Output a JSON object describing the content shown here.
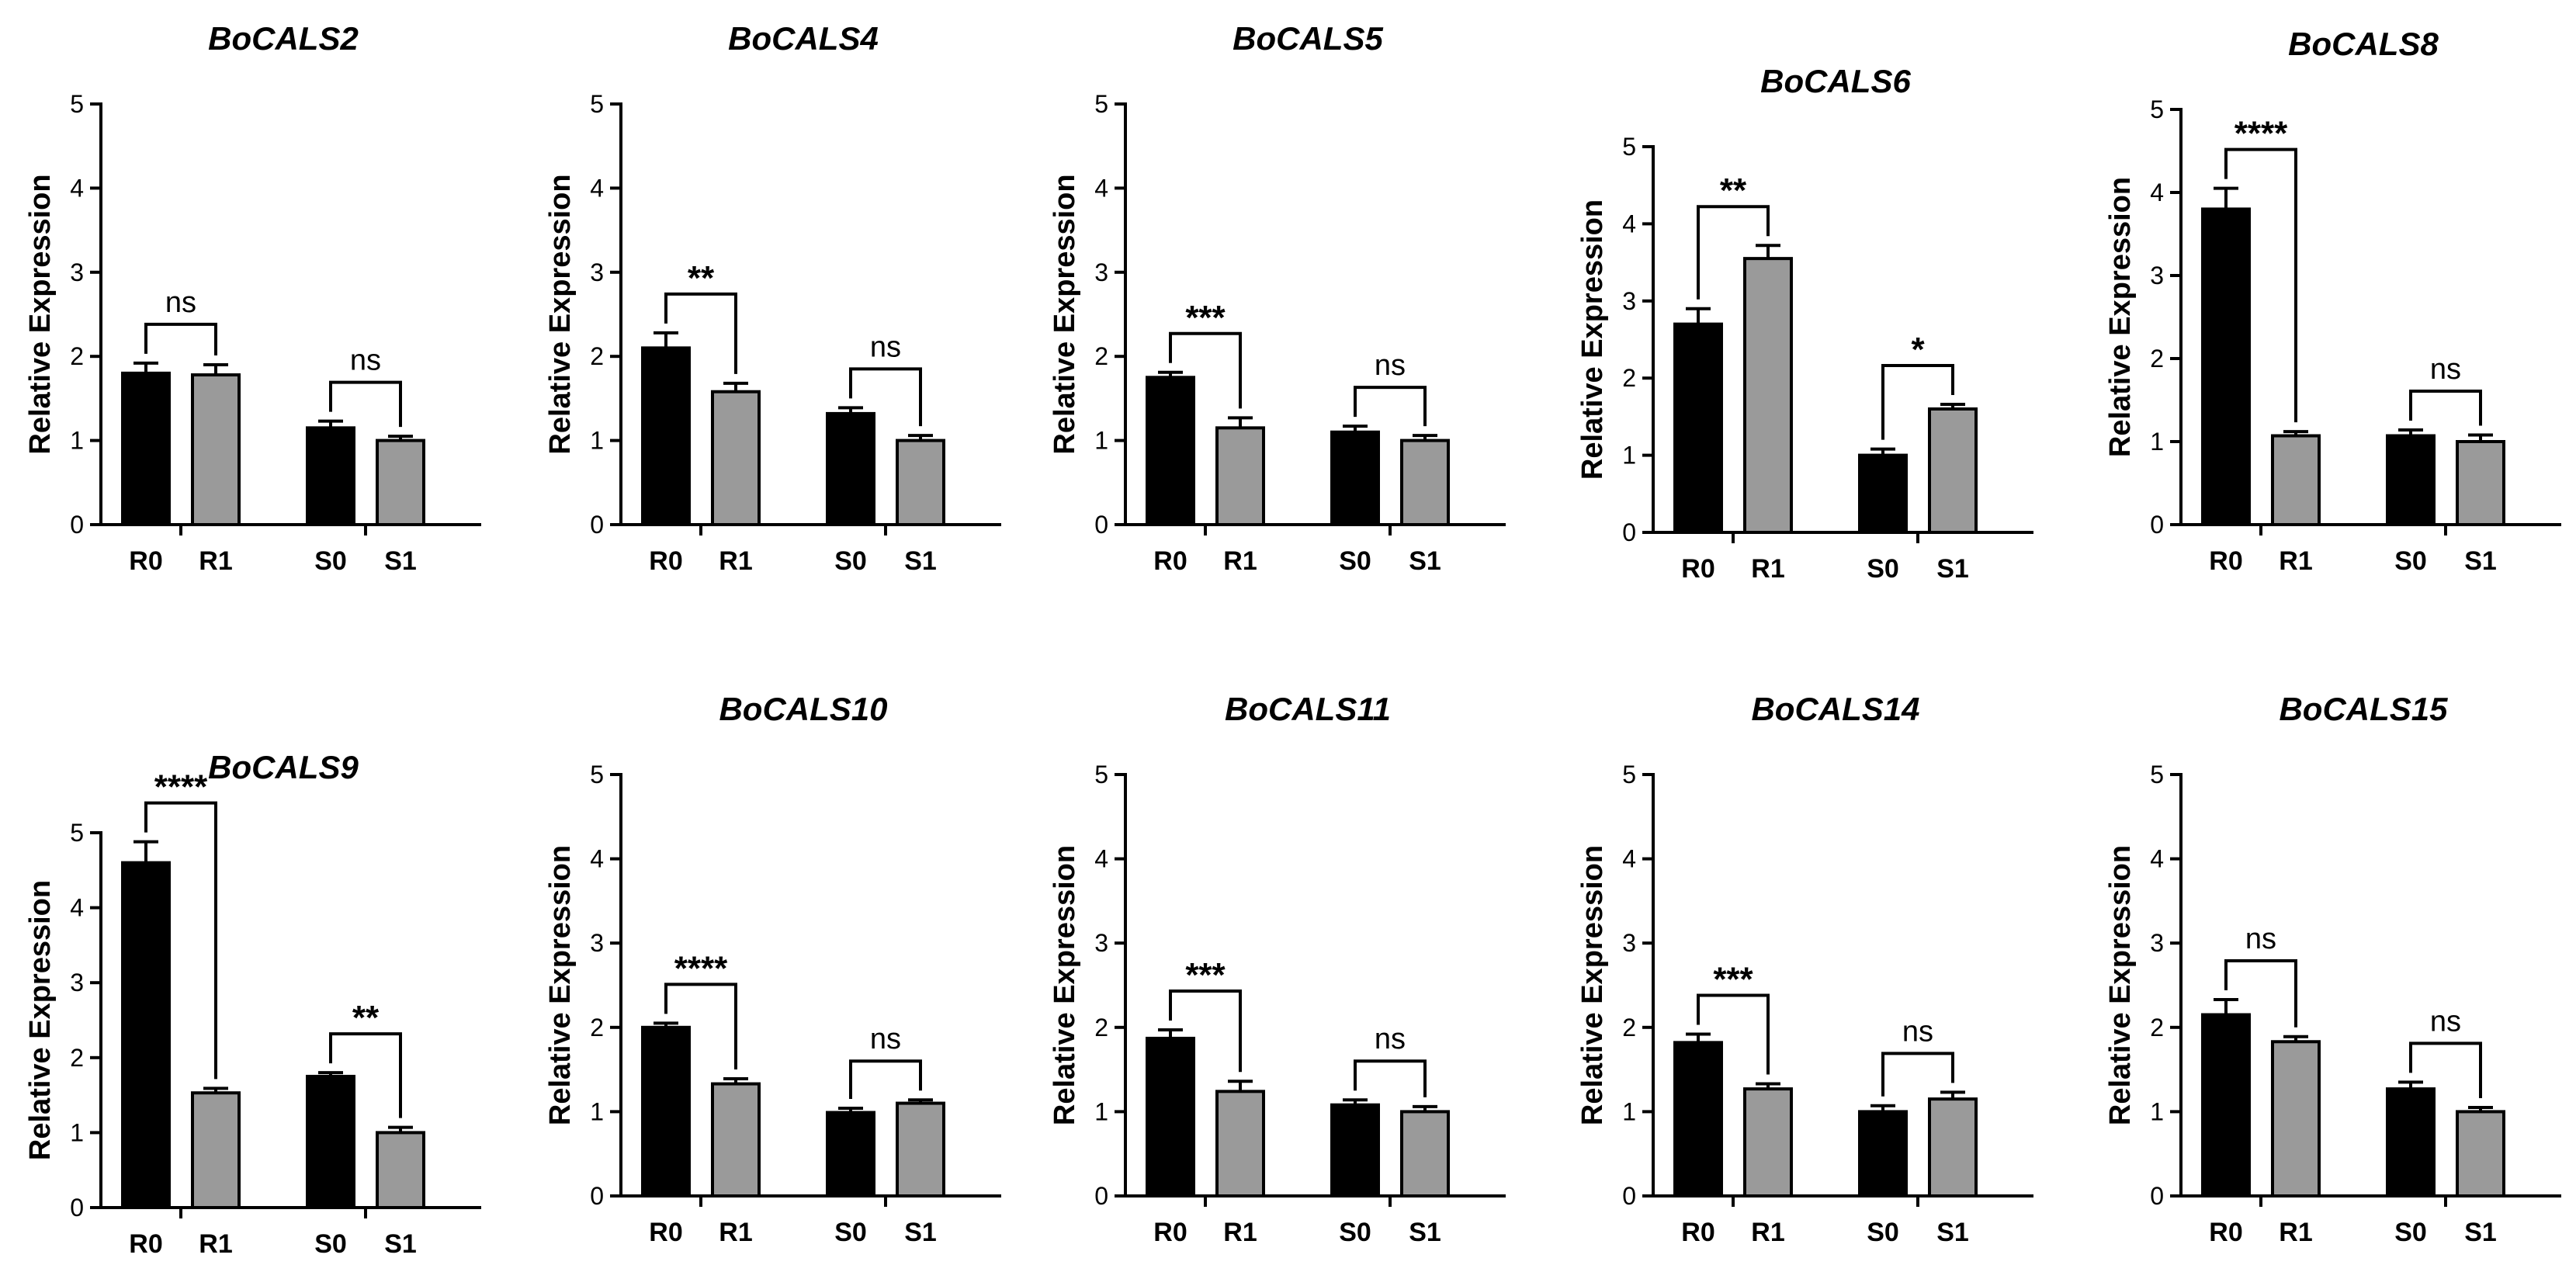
{
  "colors": {
    "control": "#000000",
    "treated": "#9a9a9a",
    "axis": "#000000"
  },
  "chart_data": [
    {
      "type": "bar",
      "title": "BoCALS2",
      "ylabel": "Relative Expression",
      "ylim": [
        0,
        5
      ],
      "yticks": [
        0,
        1,
        2,
        3,
        4,
        5
      ],
      "categories": [
        "R0",
        "R1",
        "S0",
        "S1"
      ],
      "values": [
        1.8,
        1.78,
        1.15,
        1.0
      ],
      "errors": [
        0.12,
        0.12,
        0.08,
        0.05
      ],
      "significance": [
        {
          "pair": [
            "R0",
            "R1"
          ],
          "label": "ns"
        },
        {
          "pair": [
            "S0",
            "S1"
          ],
          "label": "ns"
        }
      ]
    },
    {
      "type": "bar",
      "title": "BoCALS4",
      "ylabel": "Relative Expression",
      "ylim": [
        0,
        5
      ],
      "yticks": [
        0,
        1,
        2,
        3,
        4,
        5
      ],
      "categories": [
        "R0",
        "R1",
        "S0",
        "S1"
      ],
      "values": [
        2.1,
        1.58,
        1.32,
        1.0
      ],
      "errors": [
        0.18,
        0.1,
        0.07,
        0.06
      ],
      "significance": [
        {
          "pair": [
            "R0",
            "R1"
          ],
          "label": "**"
        },
        {
          "pair": [
            "S0",
            "S1"
          ],
          "label": "ns"
        }
      ]
    },
    {
      "type": "bar",
      "title": "BoCALS5",
      "ylabel": "Relative Expression",
      "ylim": [
        0,
        5
      ],
      "yticks": [
        0,
        1,
        2,
        3,
        4,
        5
      ],
      "categories": [
        "R0",
        "R1",
        "S0",
        "S1"
      ],
      "values": [
        1.75,
        1.15,
        1.1,
        1.0
      ],
      "errors": [
        0.06,
        0.12,
        0.07,
        0.06
      ],
      "significance": [
        {
          "pair": [
            "R0",
            "R1"
          ],
          "label": "***"
        },
        {
          "pair": [
            "S0",
            "S1"
          ],
          "label": "ns"
        }
      ]
    },
    {
      "type": "bar",
      "title": "BoCALS6",
      "ylabel": "Relative Expression",
      "ylim": [
        0,
        5
      ],
      "yticks": [
        0,
        1,
        2,
        3,
        4,
        5
      ],
      "categories": [
        "R0",
        "R1",
        "S0",
        "S1"
      ],
      "values": [
        2.7,
        3.55,
        1.0,
        1.6
      ],
      "errors": [
        0.2,
        0.17,
        0.08,
        0.06
      ],
      "significance": [
        {
          "pair": [
            "R0",
            "R1"
          ],
          "label": "**"
        },
        {
          "pair": [
            "S0",
            "S1"
          ],
          "label": "*"
        }
      ]
    },
    {
      "type": "bar",
      "title": "BoCALS8",
      "ylabel": "Relative Expression",
      "ylim": [
        0,
        5
      ],
      "yticks": [
        0,
        1,
        2,
        3,
        4,
        5
      ],
      "categories": [
        "R0",
        "R1",
        "S0",
        "S1"
      ],
      "values": [
        3.8,
        1.07,
        1.07,
        1.0
      ],
      "errors": [
        0.25,
        0.05,
        0.07,
        0.08
      ],
      "significance": [
        {
          "pair": [
            "R0",
            "R1"
          ],
          "label": "****"
        },
        {
          "pair": [
            "S0",
            "S1"
          ],
          "label": "ns"
        }
      ]
    },
    {
      "type": "bar",
      "title": "BoCALS9",
      "ylabel": "Relative Expression",
      "ylim": [
        0,
        5
      ],
      "yticks": [
        0,
        1,
        2,
        3,
        4,
        5
      ],
      "categories": [
        "R0",
        "R1",
        "S0",
        "S1"
      ],
      "values": [
        4.6,
        1.53,
        1.75,
        1.0
      ],
      "errors": [
        0.28,
        0.06,
        0.05,
        0.07
      ],
      "significance": [
        {
          "pair": [
            "R0",
            "R1"
          ],
          "label": "****"
        },
        {
          "pair": [
            "S0",
            "S1"
          ],
          "label": "**"
        }
      ]
    },
    {
      "type": "bar",
      "title": "BoCALS10",
      "ylabel": "Relative Expression",
      "ylim": [
        0,
        5
      ],
      "yticks": [
        0,
        1,
        2,
        3,
        4,
        5
      ],
      "categories": [
        "R0",
        "R1",
        "S0",
        "S1"
      ],
      "values": [
        2.0,
        1.33,
        0.99,
        1.1
      ],
      "errors": [
        0.05,
        0.06,
        0.05,
        0.04
      ],
      "significance": [
        {
          "pair": [
            "R0",
            "R1"
          ],
          "label": "****"
        },
        {
          "pair": [
            "S0",
            "S1"
          ],
          "label": "ns"
        }
      ]
    },
    {
      "type": "bar",
      "title": "BoCALS11",
      "ylabel": "Relative Expression",
      "ylim": [
        0,
        5
      ],
      "yticks": [
        0,
        1,
        2,
        3,
        4,
        5
      ],
      "categories": [
        "R0",
        "R1",
        "S0",
        "S1"
      ],
      "values": [
        1.87,
        1.24,
        1.08,
        1.0
      ],
      "errors": [
        0.1,
        0.12,
        0.06,
        0.06
      ],
      "significance": [
        {
          "pair": [
            "R0",
            "R1"
          ],
          "label": "***"
        },
        {
          "pair": [
            "S0",
            "S1"
          ],
          "label": "ns"
        }
      ]
    },
    {
      "type": "bar",
      "title": "BoCALS14",
      "ylabel": "Relative Expression",
      "ylim": [
        0,
        5
      ],
      "yticks": [
        0,
        1,
        2,
        3,
        4,
        5
      ],
      "categories": [
        "R0",
        "R1",
        "S0",
        "S1"
      ],
      "values": [
        1.82,
        1.27,
        1.0,
        1.15
      ],
      "errors": [
        0.1,
        0.06,
        0.07,
        0.08
      ],
      "significance": [
        {
          "pair": [
            "R0",
            "R1"
          ],
          "label": "***"
        },
        {
          "pair": [
            "S0",
            "S1"
          ],
          "label": "ns"
        }
      ]
    },
    {
      "type": "bar",
      "title": "BoCALS15",
      "ylabel": "Relative Expression",
      "ylim": [
        0,
        5
      ],
      "yticks": [
        0,
        1,
        2,
        3,
        4,
        5
      ],
      "categories": [
        "R0",
        "R1",
        "S0",
        "S1"
      ],
      "values": [
        2.15,
        1.83,
        1.27,
        1.0
      ],
      "errors": [
        0.18,
        0.06,
        0.08,
        0.05
      ],
      "significance": [
        {
          "pair": [
            "R0",
            "R1"
          ],
          "label": "ns"
        },
        {
          "pair": [
            "S0",
            "S1"
          ],
          "label": "ns"
        }
      ]
    }
  ]
}
